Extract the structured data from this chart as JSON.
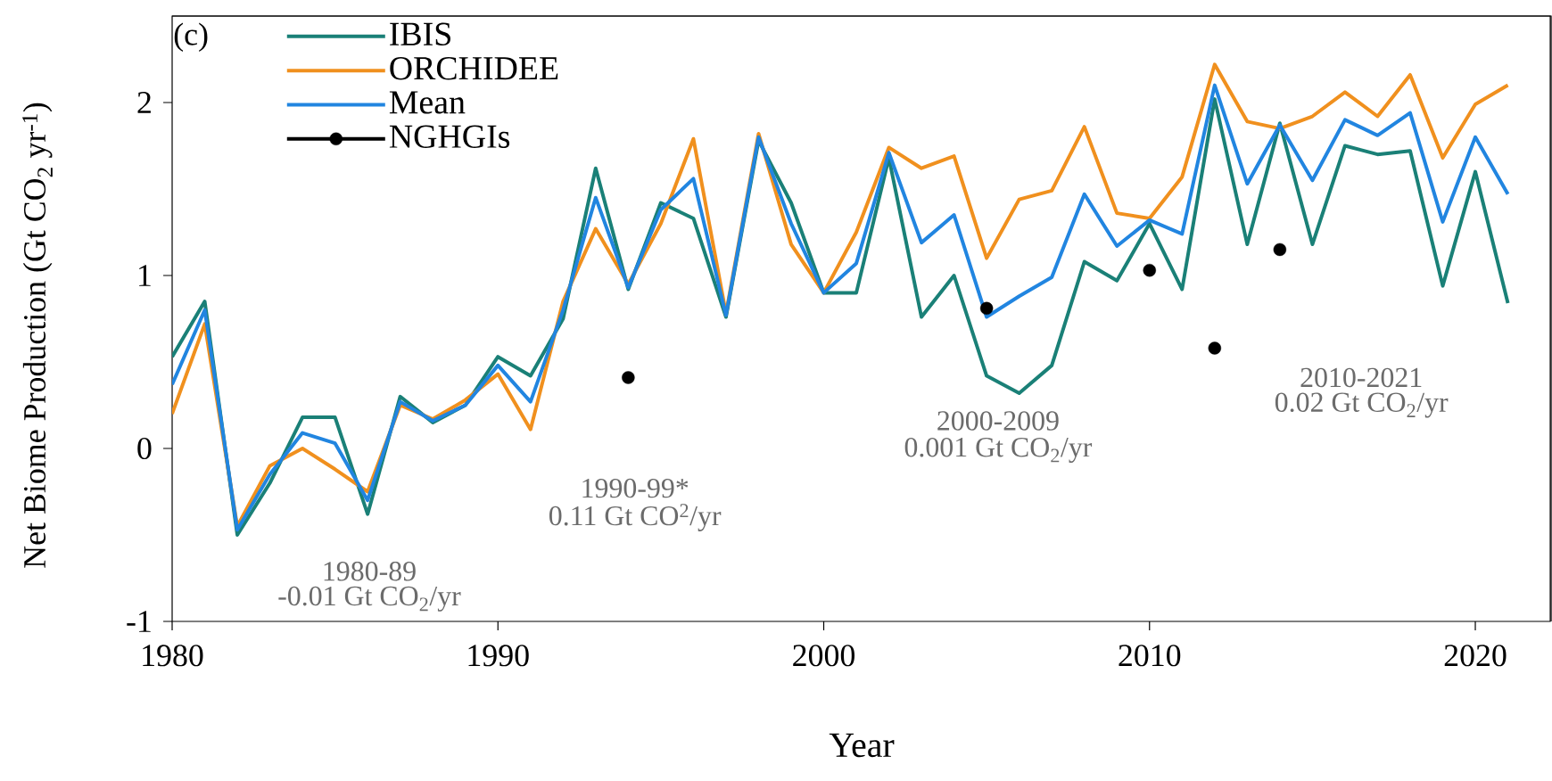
{
  "chart_data": {
    "type": "line",
    "xlabel": "Year",
    "ylabel": "Net Biome Production (Gt CO$_{2}$ yr$^{-1}$)",
    "x": [
      1980,
      1981,
      1982,
      1983,
      1984,
      1985,
      1986,
      1987,
      1988,
      1989,
      1990,
      1991,
      1992,
      1993,
      1994,
      1995,
      1996,
      1997,
      1998,
      1999,
      2000,
      2001,
      2002,
      2003,
      2004,
      2005,
      2006,
      2007,
      2008,
      2009,
      2010,
      2011,
      2012,
      2013,
      2014,
      2015,
      2016,
      2017,
      2018,
      2019,
      2020,
      2021
    ],
    "series": [
      {
        "name": "IBIS",
        "color": "#1a8077",
        "values": [
          0.53,
          0.85,
          -0.5,
          -0.2,
          0.18,
          0.18,
          -0.38,
          0.3,
          0.15,
          0.25,
          0.53,
          0.42,
          0.75,
          1.62,
          0.92,
          1.42,
          1.33,
          0.76,
          1.78,
          1.42,
          0.9,
          0.9,
          1.68,
          0.76,
          1.0,
          0.42,
          0.32,
          0.48,
          1.08,
          0.97,
          1.3,
          0.92,
          2.02,
          1.18,
          1.88,
          1.18,
          1.75,
          1.7,
          1.72,
          0.94,
          1.6,
          0.84
        ]
      },
      {
        "name": "ORCHIDEE",
        "color": "#f0901e",
        "values": [
          0.2,
          0.72,
          -0.45,
          -0.1,
          0.0,
          -0.12,
          -0.25,
          0.25,
          0.17,
          0.28,
          0.43,
          0.11,
          0.85,
          1.27,
          0.95,
          1.3,
          1.79,
          0.78,
          1.82,
          1.18,
          0.9,
          1.25,
          1.74,
          1.62,
          1.69,
          1.1,
          1.44,
          1.49,
          1.86,
          1.36,
          1.33,
          1.57,
          2.22,
          1.89,
          1.85,
          1.92,
          2.06,
          1.92,
          2.16,
          1.68,
          1.99,
          2.1
        ]
      },
      {
        "name": "Mean",
        "color": "#2185e0",
        "values": [
          0.37,
          0.8,
          -0.47,
          -0.15,
          0.09,
          0.03,
          -0.3,
          0.27,
          0.16,
          0.25,
          0.48,
          0.27,
          0.8,
          1.45,
          0.93,
          1.38,
          1.56,
          0.77,
          1.8,
          1.3,
          0.9,
          1.07,
          1.71,
          1.19,
          1.35,
          0.76,
          0.88,
          0.99,
          1.47,
          1.17,
          1.32,
          1.24,
          2.1,
          1.53,
          1.87,
          1.55,
          1.9,
          1.81,
          1.94,
          1.31,
          1.8,
          1.47
        ]
      },
      {
        "name": "NGHGIs",
        "type": "scatter",
        "marker": "circle",
        "color": "#000000",
        "x": [
          1994,
          2005,
          2010,
          2012,
          2014
        ],
        "values": [
          0.41,
          0.81,
          1.03,
          0.58,
          1.15
        ]
      }
    ],
    "xlim": [
      1980,
      2022.3
    ],
    "ylim": [
      -1,
      2.5
    ],
    "xticks": [
      1980,
      1990,
      2000,
      2010,
      2020
    ],
    "yticks": [
      -1,
      0,
      1,
      2
    ],
    "legend": "top left",
    "grid": false,
    "annotations": [
      "(c)",
      "1980-89",
      "-0.01 Gt CO$_{2}$/yr",
      "1990-99*",
      "0.11 Gt CO$^{2}$/yr",
      "2000-2009",
      "0.001 Gt CO$_{2}$/yr",
      "2010-2021",
      "0.02 Gt CO$_{2}$/yr"
    ]
  }
}
